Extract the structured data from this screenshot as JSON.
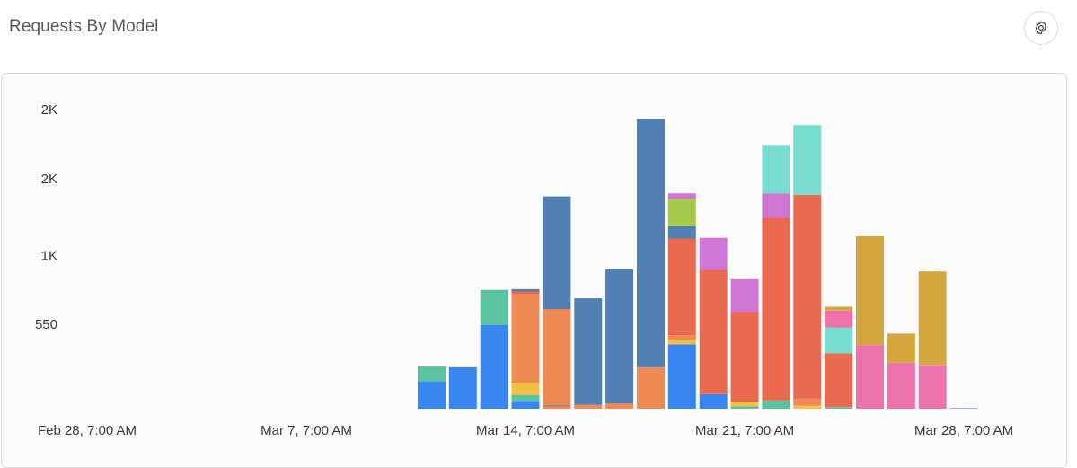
{
  "header": {
    "title": "Requests By Model",
    "settings_icon": "gear-icon"
  },
  "chart_data": {
    "type": "bar",
    "stacked": true,
    "title": "Requests By Model",
    "xlabel": "",
    "ylabel": "",
    "y_tick_labels": [
      {
        "value": 550,
        "label": "550"
      },
      {
        "value": 1000,
        "label": "1K"
      },
      {
        "value": 1500,
        "label": "2K"
      },
      {
        "value": 1950,
        "label": "2K"
      }
    ],
    "x_tick_labels": [
      "Feb 28, 7:00 AM",
      "Mar 7, 7:00 AM",
      "Mar 14, 7:00 AM",
      "Mar 21, 7:00 AM",
      "Mar 28, 7:00 AM"
    ],
    "ylim": [
      0,
      2050
    ],
    "x_tick_positions": [
      0,
      7,
      14,
      21,
      28
    ],
    "colors": {
      "blue": "#3a86f0",
      "teal": "#5bc3a2",
      "orange": "#ef8a54",
      "yellow": "#f6c043",
      "steel": "#507fb1",
      "coral": "#ea6a50",
      "purple": "#cf76d4",
      "green": "#a6c94d",
      "cyan": "#76ddd0",
      "gold": "#d4a63d",
      "pink": "#ee73ad",
      "lightblue": "#8db4e8"
    },
    "bars": [
      {
        "day": 11,
        "segments": [
          {
            "color": "blue",
            "value": 180
          },
          {
            "color": "teal",
            "value": 95
          }
        ]
      },
      {
        "day": 12,
        "segments": [
          {
            "color": "blue",
            "value": 270
          }
        ]
      },
      {
        "day": 13,
        "segments": [
          {
            "color": "blue",
            "value": 545
          },
          {
            "color": "teal",
            "value": 230
          }
        ]
      },
      {
        "day": 14,
        "segments": [
          {
            "color": "blue",
            "value": 50
          },
          {
            "color": "teal",
            "value": 40
          },
          {
            "color": "yellow",
            "value": 80
          },
          {
            "color": "orange",
            "value": 575
          },
          {
            "color": "coral",
            "value": 20
          },
          {
            "color": "steel",
            "value": 15
          }
        ]
      },
      {
        "day": 15,
        "segments": [
          {
            "color": "orange",
            "value": 15
          },
          {
            "color": "coral",
            "value": 5
          },
          {
            "color": "steel",
            "value": 5
          },
          {
            "color": "orange",
            "value": 625
          },
          {
            "color": "steel",
            "value": 735
          }
        ]
      },
      {
        "day": 16,
        "segments": [
          {
            "color": "orange",
            "value": 25
          },
          {
            "color": "steel",
            "value": 695
          }
        ]
      },
      {
        "day": 17,
        "segments": [
          {
            "color": "orange",
            "value": 35
          },
          {
            "color": "steel",
            "value": 875
          }
        ]
      },
      {
        "day": 18,
        "segments": [
          {
            "color": "orange",
            "value": 270
          },
          {
            "color": "steel",
            "value": 1620
          }
        ]
      },
      {
        "day": 19,
        "segments": [
          {
            "color": "blue",
            "value": 420
          },
          {
            "color": "yellow",
            "value": 30
          },
          {
            "color": "orange",
            "value": 30
          },
          {
            "color": "coral",
            "value": 630
          },
          {
            "color": "steel",
            "value": 80
          },
          {
            "color": "green",
            "value": 180
          },
          {
            "color": "purple",
            "value": 35
          }
        ]
      },
      {
        "day": 20,
        "segments": [
          {
            "color": "blue",
            "value": 95
          },
          {
            "color": "coral",
            "value": 810
          },
          {
            "color": "purple",
            "value": 210
          }
        ]
      },
      {
        "day": 21,
        "segments": [
          {
            "color": "teal",
            "value": 15
          },
          {
            "color": "yellow",
            "value": 30
          },
          {
            "color": "coral",
            "value": 585
          },
          {
            "color": "purple",
            "value": 215
          }
        ]
      },
      {
        "day": 22,
        "segments": [
          {
            "color": "teal",
            "value": 55
          },
          {
            "color": "coral",
            "value": 1190
          },
          {
            "color": "purple",
            "value": 160
          },
          {
            "color": "cyan",
            "value": 315
          }
        ]
      },
      {
        "day": 23,
        "segments": [
          {
            "color": "yellow",
            "value": 20
          },
          {
            "color": "orange",
            "value": 45
          },
          {
            "color": "coral",
            "value": 1330
          },
          {
            "color": "cyan",
            "value": 455
          }
        ]
      },
      {
        "day": 24,
        "segments": [
          {
            "color": "teal",
            "value": 10
          },
          {
            "color": "coral",
            "value": 350
          },
          {
            "color": "cyan",
            "value": 170
          },
          {
            "color": "pink",
            "value": 110
          },
          {
            "color": "gold",
            "value": 25
          }
        ]
      },
      {
        "day": 25,
        "segments": [
          {
            "color": "pink",
            "value": 415
          },
          {
            "color": "gold",
            "value": 710
          }
        ]
      },
      {
        "day": 26,
        "segments": [
          {
            "color": "pink",
            "value": 300
          },
          {
            "color": "gold",
            "value": 190
          }
        ]
      },
      {
        "day": 27,
        "segments": [
          {
            "color": "pink",
            "value": 285
          },
          {
            "color": "gold",
            "value": 610
          }
        ]
      },
      {
        "day": 28,
        "segments": [
          {
            "color": "lightblue",
            "value": 6
          }
        ]
      }
    ]
  }
}
